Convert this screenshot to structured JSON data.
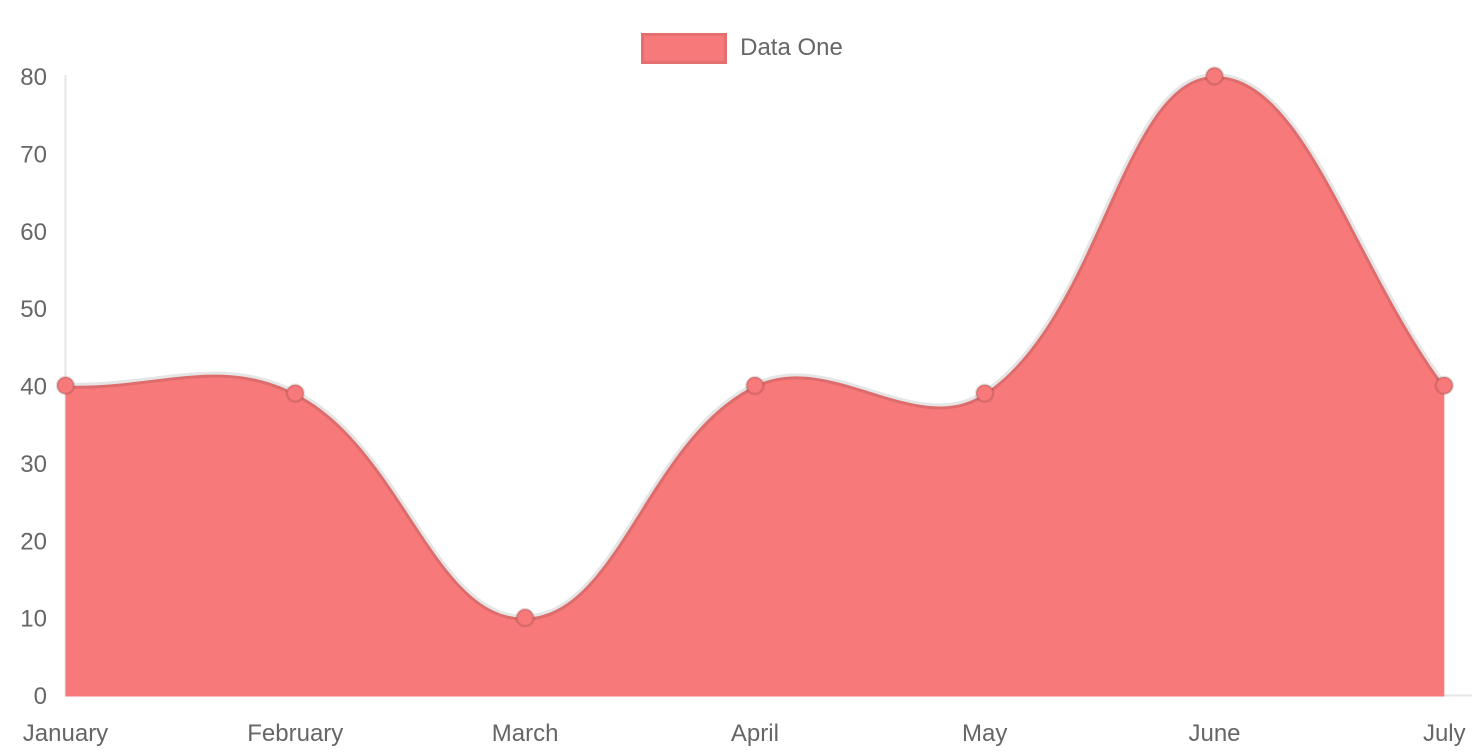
{
  "legend": {
    "position": "top",
    "items": [
      {
        "label": "Data One",
        "color": "#f87979"
      }
    ]
  },
  "chart_data": {
    "type": "area",
    "title": "",
    "xlabel": "",
    "ylabel": "",
    "categories": [
      "January",
      "February",
      "March",
      "April",
      "May",
      "June",
      "July"
    ],
    "series": [
      {
        "name": "Data One",
        "values": [
          40,
          39,
          10,
          40,
          39,
          80,
          40
        ]
      }
    ],
    "ylim": [
      0,
      80
    ],
    "yticks": [
      0,
      10,
      20,
      30,
      40,
      50,
      60,
      70,
      80
    ],
    "grid": false,
    "legend_position": "top",
    "smoothing": "bezier-tension-0.4",
    "colors": {
      "fill": "#f87979",
      "point_fill": "#f87979",
      "point_border": "rgba(0,0,0,0.12)",
      "line_stroke": "rgba(0,0,0,0.10)",
      "axis_line": "#e6e6e6",
      "tick_text": "#666666",
      "background": "#ffffff"
    }
  }
}
